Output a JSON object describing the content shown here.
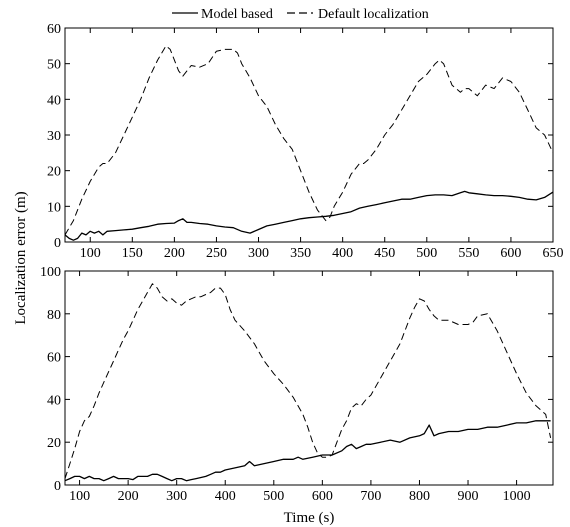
{
  "legend": {
    "items": [
      {
        "label": "Model based",
        "style": "solid"
      },
      {
        "label": "Default localization",
        "style": "dashed"
      }
    ],
    "placement": "top-center"
  },
  "axes": {
    "ylabel": "Localization error (m)",
    "xlabel": "Time (s)"
  },
  "chart_data": [
    {
      "type": "line",
      "xlim": [
        70,
        650
      ],
      "ylim": [
        0,
        60
      ],
      "xticks": [
        100,
        150,
        200,
        250,
        300,
        350,
        400,
        450,
        500,
        550,
        600,
        650
      ],
      "yticks": [
        0,
        10,
        20,
        30,
        40,
        50,
        60
      ],
      "grid": false,
      "series": [
        {
          "name": "Model based",
          "style": "solid",
          "x": [
            70,
            75,
            80,
            85,
            90,
            95,
            100,
            105,
            110,
            115,
            120,
            130,
            140,
            150,
            160,
            170,
            180,
            190,
            200,
            205,
            210,
            215,
            220,
            230,
            240,
            250,
            260,
            270,
            280,
            290,
            300,
            310,
            320,
            330,
            340,
            350,
            360,
            370,
            380,
            390,
            400,
            410,
            420,
            430,
            440,
            450,
            460,
            470,
            480,
            490,
            500,
            510,
            520,
            530,
            540,
            545,
            550,
            560,
            570,
            580,
            590,
            600,
            610,
            620,
            630,
            640,
            650
          ],
          "y": [
            2,
            1,
            0.5,
            1,
            2.5,
            2,
            3,
            2.5,
            3,
            2,
            3,
            3.2,
            3.4,
            3.6,
            4,
            4.4,
            5,
            5.2,
            5.3,
            6,
            6.5,
            5.5,
            5.5,
            5.2,
            5,
            4.5,
            4.2,
            4,
            3,
            2.5,
            3.5,
            4.5,
            5,
            5.5,
            6,
            6.5,
            6.8,
            7,
            7.2,
            7.5,
            8,
            8.5,
            9.5,
            10,
            10.5,
            11,
            11.5,
            12,
            12,
            12.5,
            13,
            13.2,
            13.2,
            13,
            13.8,
            14.2,
            13.8,
            13.5,
            13.2,
            13,
            13,
            12.8,
            12.5,
            12,
            11.8,
            12.5,
            14
          ]
        },
        {
          "name": "Default localization",
          "style": "dashed",
          "x": [
            70,
            80,
            90,
            100,
            110,
            115,
            120,
            130,
            140,
            150,
            160,
            170,
            180,
            190,
            195,
            200,
            205,
            210,
            215,
            220,
            230,
            240,
            250,
            260,
            270,
            275,
            280,
            290,
            300,
            310,
            320,
            330,
            340,
            350,
            360,
            370,
            380,
            385,
            390,
            395,
            400,
            410,
            420,
            425,
            430,
            440,
            450,
            460,
            470,
            480,
            490,
            500,
            510,
            515,
            520,
            525,
            530,
            540,
            545,
            550,
            560,
            570,
            580,
            590,
            600,
            610,
            620,
            630,
            640,
            650
          ],
          "y": [
            2,
            6,
            12,
            17,
            21,
            22,
            22,
            25,
            30,
            35,
            40,
            46,
            51,
            55,
            54,
            51,
            48,
            46.5,
            48,
            49.5,
            49,
            50,
            53.5,
            54,
            54,
            53,
            50,
            46,
            41,
            38,
            33,
            29,
            26,
            20,
            14,
            9,
            6,
            7,
            10,
            12,
            14,
            19,
            22,
            22,
            23,
            26,
            30,
            33,
            37,
            41,
            45,
            47,
            50,
            51,
            50,
            47,
            44,
            42,
            43,
            43,
            41,
            44,
            43,
            46,
            45,
            42,
            37,
            32,
            30,
            25
          ]
        }
      ]
    },
    {
      "type": "line",
      "xlim": [
        70,
        1075
      ],
      "ylim": [
        0,
        100
      ],
      "xticks": [
        100,
        200,
        300,
        400,
        500,
        600,
        700,
        800,
        900,
        1000
      ],
      "yticks": [
        0,
        20,
        40,
        60,
        80,
        100
      ],
      "grid": false,
      "series": [
        {
          "name": "Model based",
          "style": "solid",
          "x": [
            70,
            80,
            90,
            100,
            110,
            120,
            130,
            140,
            150,
            160,
            170,
            180,
            190,
            200,
            210,
            220,
            230,
            240,
            250,
            260,
            270,
            280,
            290,
            300,
            310,
            320,
            330,
            340,
            350,
            360,
            370,
            380,
            390,
            400,
            420,
            440,
            450,
            460,
            480,
            500,
            520,
            540,
            550,
            560,
            580,
            600,
            620,
            640,
            650,
            660,
            670,
            680,
            690,
            700,
            720,
            740,
            760,
            780,
            800,
            810,
            820,
            830,
            840,
            860,
            880,
            900,
            920,
            940,
            960,
            980,
            1000,
            1020,
            1040,
            1060,
            1070
          ],
          "y": [
            2,
            3,
            4,
            4,
            3,
            4,
            3,
            3,
            2,
            3,
            4,
            3,
            3,
            3,
            2.5,
            4,
            4,
            4,
            5,
            5,
            4,
            3,
            2,
            3,
            3,
            2,
            2.5,
            3,
            3.5,
            4,
            5,
            6,
            6,
            7,
            8,
            9,
            11,
            9,
            10,
            11,
            12,
            12,
            13,
            12,
            13,
            14,
            14,
            16,
            18,
            19,
            17,
            18,
            19,
            19,
            20,
            21,
            20,
            22,
            23,
            24,
            28,
            23,
            24,
            25,
            25,
            26,
            26,
            27,
            27,
            28,
            29,
            29,
            30,
            30,
            30
          ]
        },
        {
          "name": "Default localization",
          "style": "dashed",
          "x": [
            70,
            80,
            90,
            100,
            110,
            120,
            130,
            140,
            150,
            160,
            170,
            180,
            190,
            200,
            210,
            220,
            230,
            240,
            250,
            260,
            270,
            280,
            290,
            300,
            310,
            320,
            330,
            340,
            350,
            360,
            370,
            380,
            390,
            400,
            410,
            420,
            440,
            460,
            480,
            500,
            520,
            540,
            560,
            570,
            580,
            590,
            600,
            610,
            620,
            630,
            640,
            650,
            660,
            670,
            680,
            690,
            700,
            720,
            740,
            760,
            770,
            780,
            790,
            800,
            810,
            820,
            830,
            840,
            860,
            880,
            900,
            910,
            920,
            940,
            960,
            980,
            1000,
            1020,
            1040,
            1060,
            1070
          ],
          "y": [
            3,
            10,
            17,
            25,
            30,
            32,
            37,
            43,
            48,
            53,
            58,
            63,
            68,
            72,
            77,
            82,
            86,
            90,
            94,
            92,
            88,
            86,
            87,
            85,
            84,
            86,
            87,
            88,
            88,
            89,
            90,
            92,
            92,
            89,
            82,
            77,
            72,
            66,
            58,
            52,
            47,
            41,
            33,
            27,
            20,
            15,
            13,
            13,
            14,
            20,
            26,
            30,
            36,
            38,
            37,
            40,
            42,
            50,
            58,
            66,
            72,
            78,
            83,
            87,
            86,
            82,
            79,
            77,
            77,
            75,
            75,
            76,
            79,
            80,
            72,
            62,
            52,
            43,
            37,
            33,
            22
          ]
        }
      ]
    }
  ]
}
